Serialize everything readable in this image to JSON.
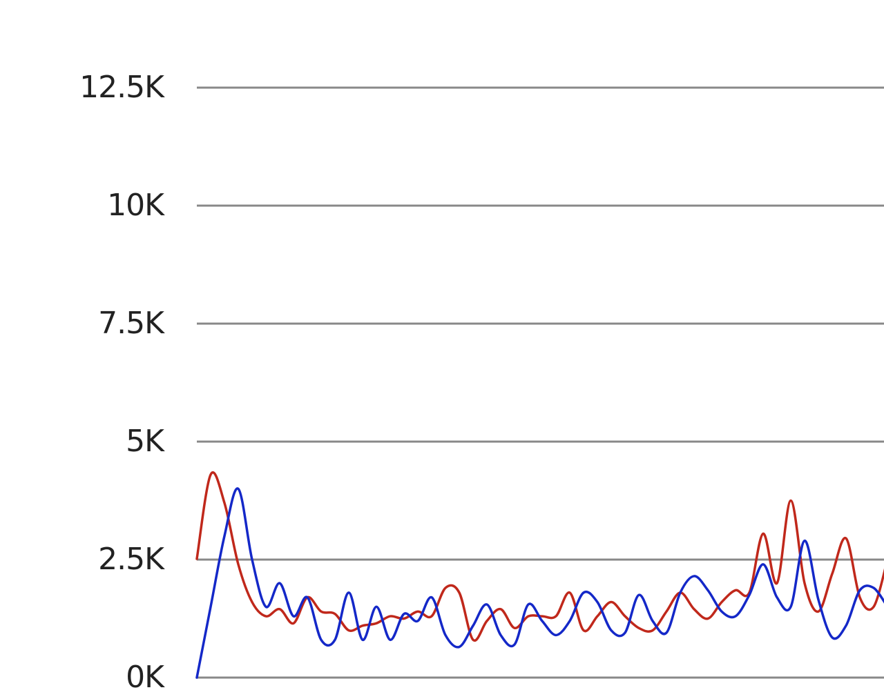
{
  "chart_data": {
    "type": "line",
    "ylim": [
      0,
      14000
    ],
    "yticks": [
      {
        "value": 0,
        "label": "0K"
      },
      {
        "value": 2500,
        "label": "2.5K"
      },
      {
        "value": 5000,
        "label": "5K"
      },
      {
        "value": 7500,
        "label": "7.5K"
      },
      {
        "value": 10000,
        "label": "10K"
      },
      {
        "value": 12500,
        "label": "12.5K"
      }
    ],
    "grid": true,
    "series": [
      {
        "color": "#c0281b",
        "values": [
          2515,
          4300,
          3700,
          2400,
          1600,
          1300,
          1450,
          1150,
          1700,
          1400,
          1350,
          1000,
          1100,
          1150,
          1300,
          1250,
          1400,
          1300,
          1900,
          1800,
          800,
          1200,
          1450,
          1050,
          1300,
          1300,
          1300,
          1800,
          1000,
          1300,
          1600,
          1300,
          1050,
          1000,
          1400,
          1800,
          1450,
          1250,
          1600,
          1850,
          1800,
          3050,
          2000,
          3750,
          2000,
          1400,
          2200,
          2950,
          1700,
          1500,
          2500
        ]
      },
      {
        "color": "#1428c8",
        "values": [
          0,
          1500,
          3000,
          4000,
          2500,
          1500,
          2000,
          1300,
          1700,
          800,
          800,
          1800,
          800,
          1500,
          800,
          1350,
          1200,
          1700,
          900,
          650,
          1100,
          1550,
          900,
          700,
          1550,
          1200,
          900,
          1200,
          1800,
          1600,
          1000,
          950,
          1750,
          1200,
          950,
          1800,
          2150,
          1850,
          1400,
          1300,
          1750,
          2400,
          1700,
          1500,
          2900,
          1650,
          850,
          1100,
          1850,
          1900,
          1500
        ]
      }
    ]
  }
}
